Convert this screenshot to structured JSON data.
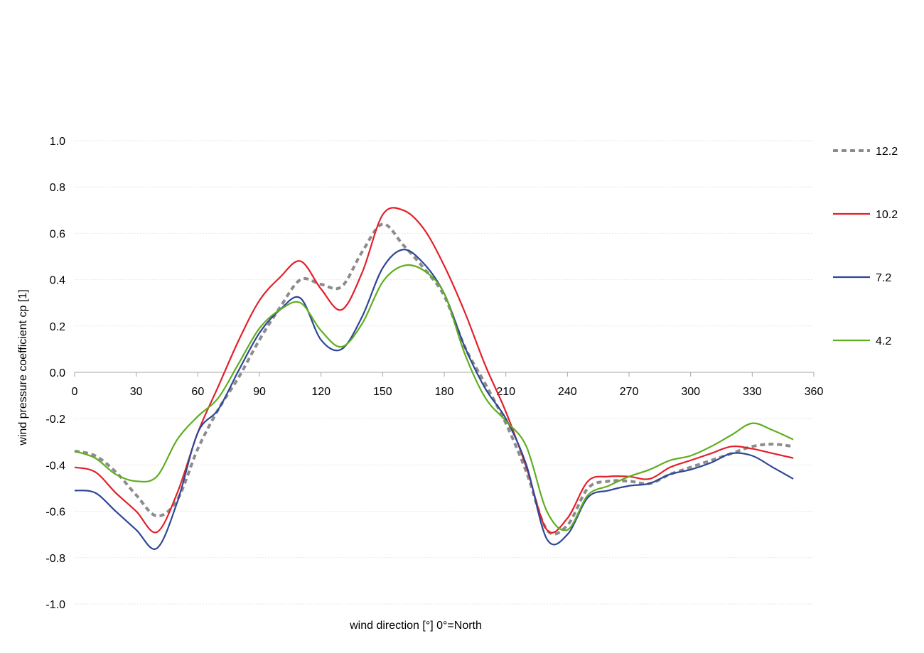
{
  "chart_data": {
    "type": "line",
    "title": "",
    "xlabel": "wind direction [°] 0°=North",
    "ylabel": "wind pressure coefficient cp [1]",
    "xlim": [
      0,
      360
    ],
    "ylim": [
      -1.0,
      1.0
    ],
    "xticks": [
      "0",
      "30",
      "60",
      "90",
      "120",
      "150",
      "180",
      "210",
      "240",
      "270",
      "300",
      "330",
      "360"
    ],
    "yticks": [
      "1.0",
      "0.8",
      "0.6",
      "0.4",
      "0.2",
      "0.0",
      "-0.2",
      "-0.4",
      "-0.6",
      "-0.8",
      "-1.0"
    ],
    "grid": true,
    "legend_position": "right",
    "x": [
      0,
      10,
      20,
      30,
      40,
      50,
      60,
      70,
      80,
      90,
      100,
      110,
      120,
      130,
      140,
      150,
      160,
      170,
      180,
      190,
      200,
      210,
      220,
      230,
      240,
      250,
      260,
      270,
      280,
      290,
      300,
      310,
      320,
      330,
      340,
      350
    ],
    "series": [
      {
        "name": "12.2",
        "color": "#8c8c8c",
        "dashed": true,
        "values": [
          -0.34,
          -0.36,
          -0.43,
          -0.53,
          -0.62,
          -0.55,
          -0.33,
          -0.16,
          -0.02,
          0.14,
          0.28,
          0.4,
          0.38,
          0.37,
          0.52,
          0.64,
          0.55,
          0.45,
          0.33,
          0.11,
          -0.05,
          -0.22,
          -0.43,
          -0.68,
          -0.66,
          -0.5,
          -0.47,
          -0.47,
          -0.48,
          -0.44,
          -0.41,
          -0.38,
          -0.35,
          -0.32,
          -0.31,
          -0.32
        ]
      },
      {
        "name": "10.2",
        "color": "#e3202a",
        "dashed": false,
        "values": [
          -0.41,
          -0.43,
          -0.52,
          -0.6,
          -0.69,
          -0.52,
          -0.26,
          -0.06,
          0.14,
          0.31,
          0.41,
          0.48,
          0.36,
          0.27,
          0.43,
          0.68,
          0.7,
          0.62,
          0.46,
          0.26,
          0.03,
          -0.17,
          -0.41,
          -0.68,
          -0.63,
          -0.47,
          -0.45,
          -0.45,
          -0.46,
          -0.41,
          -0.38,
          -0.35,
          -0.32,
          -0.33,
          -0.35,
          -0.37
        ]
      },
      {
        "name": "7.2",
        "color": "#2e4797",
        "dashed": false,
        "values": [
          -0.51,
          -0.52,
          -0.6,
          -0.68,
          -0.76,
          -0.56,
          -0.26,
          -0.16,
          0.01,
          0.17,
          0.27,
          0.32,
          0.14,
          0.1,
          0.24,
          0.45,
          0.53,
          0.47,
          0.34,
          0.11,
          -0.07,
          -0.2,
          -0.4,
          -0.72,
          -0.7,
          -0.54,
          -0.51,
          -0.49,
          -0.48,
          -0.44,
          -0.42,
          -0.39,
          -0.35,
          -0.36,
          -0.41,
          -0.46
        ]
      },
      {
        "name": "4.2",
        "color": "#5fae1e",
        "dashed": false,
        "values": [
          -0.34,
          -0.37,
          -0.44,
          -0.47,
          -0.45,
          -0.29,
          -0.19,
          -0.11,
          0.04,
          0.19,
          0.27,
          0.3,
          0.18,
          0.11,
          0.21,
          0.39,
          0.46,
          0.44,
          0.34,
          0.08,
          -0.11,
          -0.21,
          -0.32,
          -0.6,
          -0.68,
          -0.53,
          -0.49,
          -0.45,
          -0.42,
          -0.38,
          -0.36,
          -0.32,
          -0.27,
          -0.22,
          -0.25,
          -0.29
        ]
      }
    ]
  }
}
